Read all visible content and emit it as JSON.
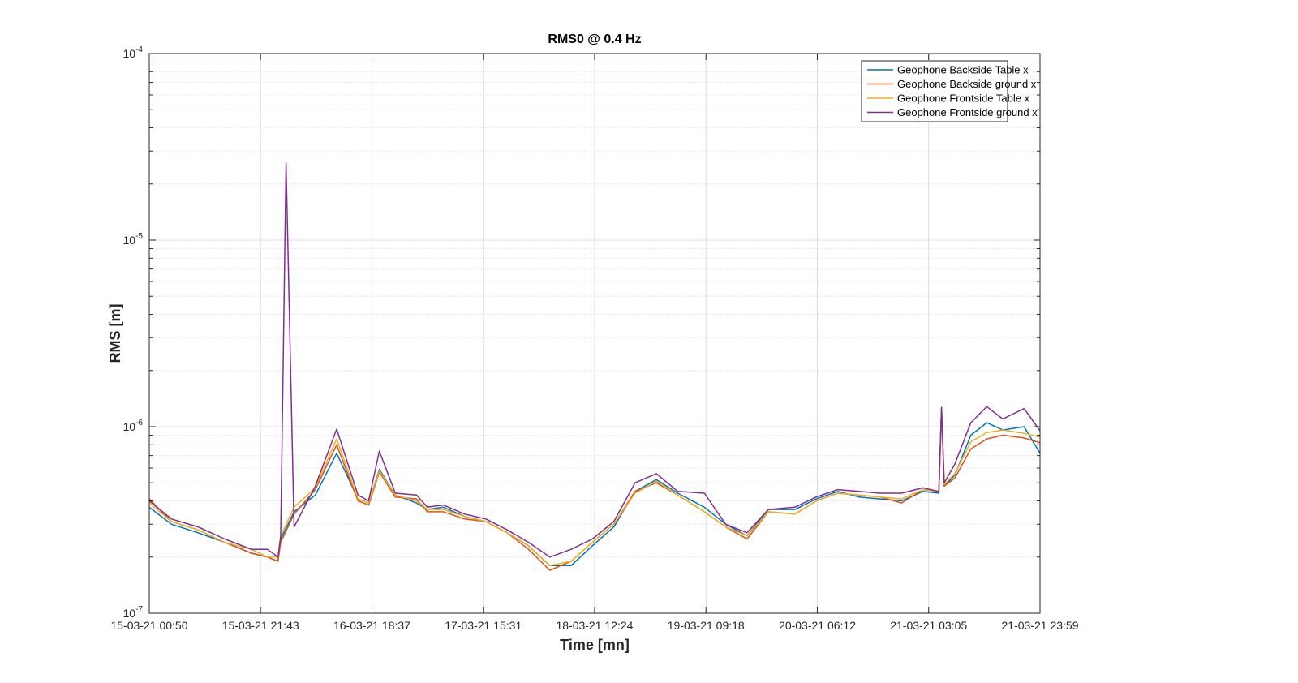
{
  "chart_data": {
    "type": "line",
    "title": "RMS0 @ 0.4 Hz",
    "xlabel": "Time [mn]",
    "ylabel": "RMS [m]",
    "yscale": "log",
    "ylim": [
      1e-07,
      0.0001
    ],
    "xlim": [
      "15-03-21 00:50",
      "21-03-21 23:59"
    ],
    "grid": true,
    "legend_position": "top-right",
    "x_tick_labels": [
      "15-03-21 00:50",
      "15-03-21 21:43",
      "16-03-21 18:37",
      "17-03-21 15:31",
      "18-03-21 12:24",
      "19-03-21 09:18",
      "20-03-21 06:12",
      "21-03-21 03:05",
      "21-03-21 23:59"
    ],
    "y_ticks": [
      {
        "base": "10",
        "exp": "-7",
        "value": 1e-07
      },
      {
        "base": "10",
        "exp": "-6",
        "value": 1e-06
      },
      {
        "base": "10",
        "exp": "-5",
        "value": 1e-05
      },
      {
        "base": "10",
        "exp": "-4",
        "value": 0.0001
      }
    ],
    "series": [
      {
        "name": "Geophone Backside Table x",
        "color": "#0072BD",
        "x": [
          "15-03-21 00:50",
          "15-03-21 05:00",
          "15-03-21 10:00",
          "15-03-21 15:00",
          "15-03-21 20:00",
          "15-03-21 23:00",
          "16-03-21 01:00",
          "16-03-21 01:30",
          "16-03-21 04:00",
          "16-03-21 08:00",
          "16-03-21 12:00",
          "16-03-21 16:00",
          "16-03-21 18:00",
          "16-03-21 20:00",
          "16-03-21 23:00",
          "17-03-21 03:00",
          "17-03-21 05:00",
          "17-03-21 08:00",
          "17-03-21 12:00",
          "17-03-21 16:00",
          "17-03-21 20:00",
          "18-03-21 00:00",
          "18-03-21 04:00",
          "18-03-21 08:00",
          "18-03-21 12:00",
          "18-03-21 16:00",
          "18-03-21 20:00",
          "19-03-21 00:00",
          "19-03-21 04:00",
          "19-03-21 09:00",
          "19-03-21 13:00",
          "19-03-21 17:00",
          "19-03-21 21:00",
          "20-03-21 02:00",
          "20-03-21 06:00",
          "20-03-21 10:00",
          "20-03-21 14:00",
          "20-03-21 18:00",
          "20-03-21 22:00",
          "21-03-21 02:00",
          "21-03-21 05:00",
          "21-03-21 05:30",
          "21-03-21 06:00",
          "21-03-21 08:00",
          "21-03-21 11:00",
          "21-03-21 14:00",
          "21-03-21 17:00",
          "21-03-21 21:00",
          "21-03-21 23:59"
        ],
        "values": [
          3.7e-07,
          3e-07,
          2.7e-07,
          2.4e-07,
          2.1e-07,
          2e-07,
          1.9e-07,
          2.5e-07,
          3.5e-07,
          4.3e-07,
          7.2e-07,
          4.1e-07,
          3.9e-07,
          5.9e-07,
          4.3e-07,
          3.9e-07,
          3.6e-07,
          3.7e-07,
          3.3e-07,
          3.1e-07,
          2.7e-07,
          2.3e-07,
          1.8e-07,
          1.8e-07,
          2.3e-07,
          2.9e-07,
          4.5e-07,
          5.2e-07,
          4.4e-07,
          3.7e-07,
          3e-07,
          2.6e-07,
          3.6e-07,
          3.6e-07,
          4.1e-07,
          4.5e-07,
          4.2e-07,
          4.1e-07,
          4e-07,
          4.5e-07,
          4.4e-07,
          1.25e-06,
          4.8e-07,
          5.5e-07,
          9e-07,
          1.05e-06,
          9.6e-07,
          1e-06,
          7.2e-07
        ]
      },
      {
        "name": "Geophone Backside ground x",
        "color": "#D95319",
        "x": [
          "15-03-21 00:50",
          "15-03-21 05:00",
          "15-03-21 10:00",
          "15-03-21 15:00",
          "15-03-21 20:00",
          "15-03-21 23:00",
          "16-03-21 01:00",
          "16-03-21 01:30",
          "16-03-21 04:00",
          "16-03-21 08:00",
          "16-03-21 12:00",
          "16-03-21 16:00",
          "16-03-21 18:00",
          "16-03-21 20:00",
          "16-03-21 23:00",
          "17-03-21 03:00",
          "17-03-21 05:00",
          "17-03-21 08:00",
          "17-03-21 12:00",
          "17-03-21 16:00",
          "17-03-21 20:00",
          "18-03-21 00:00",
          "18-03-21 04:00",
          "18-03-21 08:00",
          "18-03-21 12:00",
          "18-03-21 16:00",
          "18-03-21 20:00",
          "19-03-21 00:00",
          "19-03-21 04:00",
          "19-03-21 09:00",
          "19-03-21 13:00",
          "19-03-21 17:00",
          "19-03-21 21:00",
          "20-03-21 02:00",
          "20-03-21 06:00",
          "20-03-21 10:00",
          "20-03-21 14:00",
          "20-03-21 18:00",
          "20-03-21 22:00",
          "21-03-21 02:00",
          "21-03-21 05:00",
          "21-03-21 05:30",
          "21-03-21 06:00",
          "21-03-21 08:00",
          "21-03-21 11:00",
          "21-03-21 14:00",
          "21-03-21 17:00",
          "21-03-21 21:00",
          "21-03-21 23:59"
        ],
        "values": [
          4.1e-07,
          3.1e-07,
          2.8e-07,
          2.4e-07,
          2.1e-07,
          2e-07,
          1.9e-07,
          2.4e-07,
          3.4e-07,
          4.6e-07,
          8e-07,
          4e-07,
          3.8e-07,
          5.7e-07,
          4.2e-07,
          4.1e-07,
          3.5e-07,
          3.5e-07,
          3.2e-07,
          3.1e-07,
          2.7e-07,
          2.2e-07,
          1.7e-07,
          1.9e-07,
          2.4e-07,
          3e-07,
          4.5e-07,
          5e-07,
          4.3e-07,
          3.5e-07,
          2.9e-07,
          2.5e-07,
          3.5e-07,
          3.4e-07,
          4e-07,
          4.4e-07,
          4.3e-07,
          4.2e-07,
          3.9e-07,
          4.6e-07,
          4.5e-07,
          1.25e-06,
          4.8e-07,
          5.3e-07,
          7.6e-07,
          8.6e-07,
          9e-07,
          8.7e-07,
          8.2e-07
        ]
      },
      {
        "name": "Geophone Frontside Table x",
        "color": "#EDB120",
        "x": [
          "15-03-21 00:50",
          "15-03-21 05:00",
          "15-03-21 10:00",
          "15-03-21 15:00",
          "15-03-21 20:00",
          "15-03-21 23:00",
          "16-03-21 01:00",
          "16-03-21 01:30",
          "16-03-21 04:00",
          "16-03-21 08:00",
          "16-03-21 12:00",
          "16-03-21 16:00",
          "16-03-21 18:00",
          "16-03-21 20:00",
          "16-03-21 23:00",
          "17-03-21 03:00",
          "17-03-21 05:00",
          "17-03-21 08:00",
          "17-03-21 12:00",
          "17-03-21 16:00",
          "17-03-21 20:00",
          "18-03-21 00:00",
          "18-03-21 04:00",
          "18-03-21 08:00",
          "18-03-21 12:00",
          "18-03-21 16:00",
          "18-03-21 20:00",
          "19-03-21 00:00",
          "19-03-21 04:00",
          "19-03-21 09:00",
          "19-03-21 13:00",
          "19-03-21 17:00",
          "19-03-21 21:00",
          "20-03-21 02:00",
          "20-03-21 06:00",
          "20-03-21 10:00",
          "20-03-21 14:00",
          "20-03-21 18:00",
          "20-03-21 22:00",
          "21-03-21 02:00",
          "21-03-21 05:00",
          "21-03-21 05:30",
          "21-03-21 06:00",
          "21-03-21 08:00",
          "21-03-21 11:00",
          "21-03-21 14:00",
          "21-03-21 17:00",
          "21-03-21 21:00",
          "21-03-21 23:59"
        ],
        "values": [
          3.9e-07,
          3.1e-07,
          2.8e-07,
          2.4e-07,
          2.2e-07,
          2e-07,
          2e-07,
          2.6e-07,
          3.7e-07,
          4.7e-07,
          8.6e-07,
          4.1e-07,
          3.9e-07,
          5.8e-07,
          4.3e-07,
          4e-07,
          3.6e-07,
          3.6e-07,
          3.3e-07,
          3.1e-07,
          2.7e-07,
          2.3e-07,
          1.8e-07,
          1.9e-07,
          2.4e-07,
          3e-07,
          4.4e-07,
          5.1e-07,
          4.3e-07,
          3.5e-07,
          2.9e-07,
          2.6e-07,
          3.5e-07,
          3.4e-07,
          4e-07,
          4.4e-07,
          4.3e-07,
          4.2e-07,
          4.1e-07,
          4.6e-07,
          4.5e-07,
          1.25e-06,
          4.9e-07,
          5.6e-07,
          8.3e-07,
          9.3e-07,
          9.6e-07,
          9.2e-07,
          8.8e-07
        ]
      },
      {
        "name": "Geophone Frontside ground x",
        "color": "#7E2F8E",
        "x": [
          "15-03-21 00:50",
          "15-03-21 05:00",
          "15-03-21 10:00",
          "15-03-21 15:00",
          "15-03-21 20:00",
          "15-03-21 23:00",
          "16-03-21 01:00",
          "16-03-21 01:30",
          "16-03-21 02:30",
          "16-03-21 04:00",
          "16-03-21 08:00",
          "16-03-21 12:00",
          "16-03-21 16:00",
          "16-03-21 18:00",
          "16-03-21 20:00",
          "16-03-21 23:00",
          "17-03-21 03:00",
          "17-03-21 05:00",
          "17-03-21 08:00",
          "17-03-21 12:00",
          "17-03-21 16:00",
          "17-03-21 20:00",
          "18-03-21 00:00",
          "18-03-21 04:00",
          "18-03-21 08:00",
          "18-03-21 12:00",
          "18-03-21 16:00",
          "18-03-21 20:00",
          "19-03-21 00:00",
          "19-03-21 04:00",
          "19-03-21 09:00",
          "19-03-21 13:00",
          "19-03-21 17:00",
          "19-03-21 21:00",
          "20-03-21 02:00",
          "20-03-21 06:00",
          "20-03-21 10:00",
          "20-03-21 14:00",
          "20-03-21 18:00",
          "20-03-21 22:00",
          "21-03-21 02:00",
          "21-03-21 05:00",
          "21-03-21 05:30",
          "21-03-21 06:00",
          "21-03-21 08:00",
          "21-03-21 11:00",
          "21-03-21 14:00",
          "21-03-21 17:00",
          "21-03-21 21:00",
          "21-03-21 23:59"
        ],
        "values": [
          4e-07,
          3.2e-07,
          2.9e-07,
          2.5e-07,
          2.2e-07,
          2.2e-07,
          2e-07,
          2.6e-07,
          2.6e-05,
          2.9e-07,
          4.8e-07,
          9.7e-07,
          4.3e-07,
          4e-07,
          7.4e-07,
          4.4e-07,
          4.3e-07,
          3.7e-07,
          3.8e-07,
          3.4e-07,
          3.2e-07,
          2.8e-07,
          2.4e-07,
          2e-07,
          2.2e-07,
          2.5e-07,
          3.1e-07,
          5e-07,
          5.6e-07,
          4.5e-07,
          4.4e-07,
          3e-07,
          2.7e-07,
          3.6e-07,
          3.7e-07,
          4.2e-07,
          4.6e-07,
          4.5e-07,
          4.4e-07,
          4.4e-07,
          4.7e-07,
          4.5e-07,
          1.27e-06,
          5e-07,
          6.3e-07,
          1.05e-06,
          1.28e-06,
          1.1e-06,
          1.25e-06,
          9.5e-07
        ]
      }
    ]
  }
}
